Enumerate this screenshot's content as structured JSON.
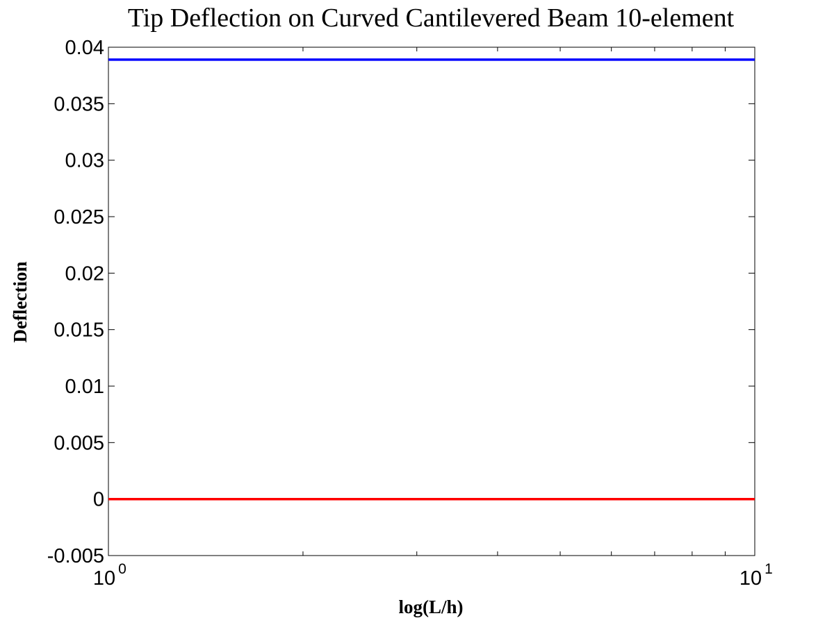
{
  "chart_data": {
    "type": "line",
    "title": "Tip Deflection on Curved Cantilevered Beam 10-element",
    "xlabel": "log(L/h)",
    "ylabel": "Deflection",
    "xscale": "log",
    "xlim": [
      1,
      10
    ],
    "ylim": [
      -0.005,
      0.04
    ],
    "x_ticks": [
      {
        "value": 1,
        "base": "10",
        "exponent": "0"
      },
      {
        "value": 10,
        "base": "10",
        "exponent": "1"
      }
    ],
    "y_ticks": [
      {
        "value": -0.005,
        "label": "-0.005"
      },
      {
        "value": 0,
        "label": "0"
      },
      {
        "value": 0.005,
        "label": "0.005"
      },
      {
        "value": 0.01,
        "label": "0.01"
      },
      {
        "value": 0.015,
        "label": "0.015"
      },
      {
        "value": 0.02,
        "label": "0.02"
      },
      {
        "value": 0.025,
        "label": "0.025"
      },
      {
        "value": 0.03,
        "label": "0.03"
      },
      {
        "value": 0.035,
        "label": "0.035"
      },
      {
        "value": 0.04,
        "label": "0.04"
      }
    ],
    "grid": false,
    "series": [
      {
        "color": "#0000ff",
        "x": [
          1,
          10
        ],
        "y": [
          0.0389,
          0.0389
        ]
      },
      {
        "color": "#ff0000",
        "x": [
          1,
          10
        ],
        "y": [
          0,
          0
        ]
      }
    ]
  }
}
